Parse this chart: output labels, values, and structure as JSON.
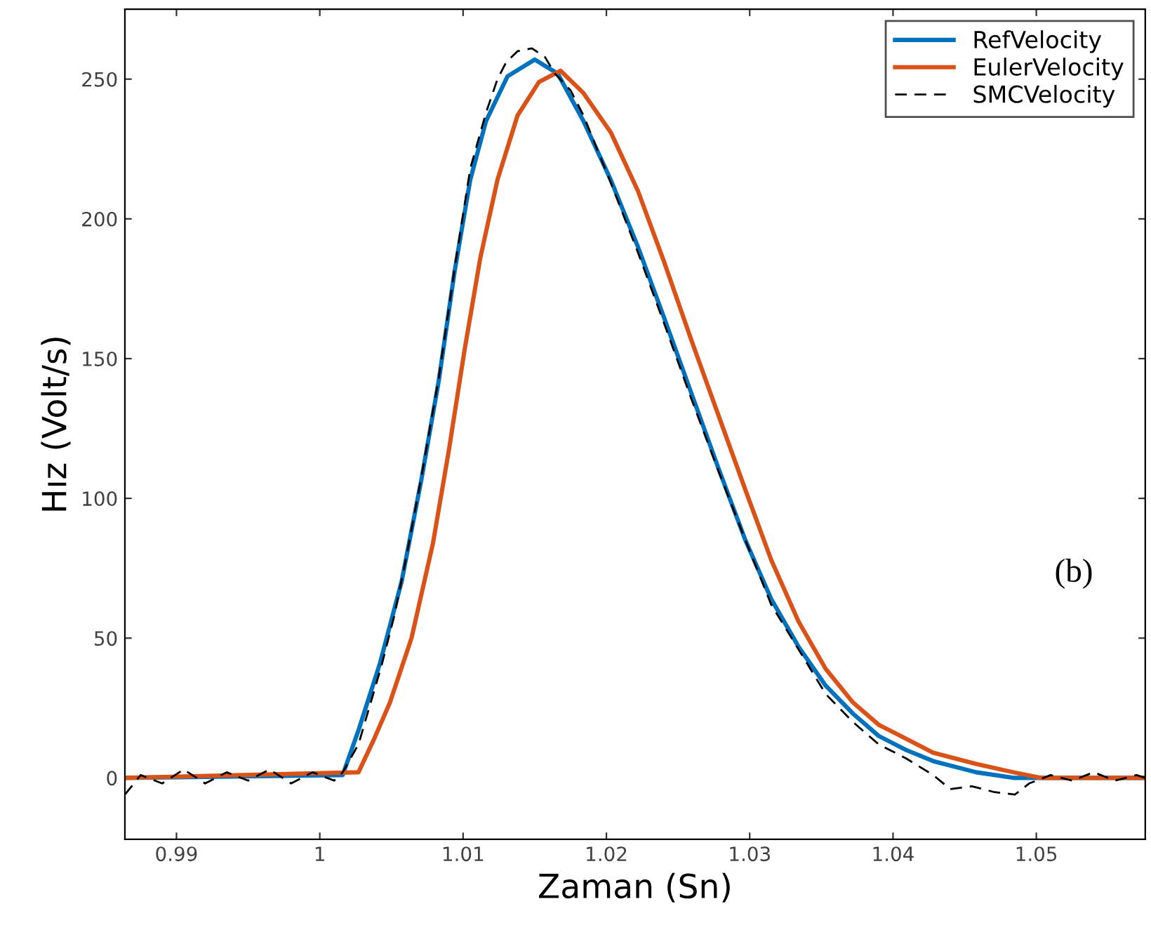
{
  "chart_data": {
    "type": "line",
    "xlabel": "Zaman (Sn)",
    "ylabel": "Hız (Volt/s)",
    "annotations": [
      "(b)"
    ],
    "xlim": [
      0.9864,
      1.0576
    ],
    "xticks": [
      0.99,
      1,
      1.01,
      1.02,
      1.03,
      1.04,
      1.05
    ],
    "ylim": [
      -22,
      275
    ],
    "yticks": [
      0,
      50,
      100,
      150,
      200,
      250
    ],
    "grid": false,
    "legend": "top right",
    "marker": "none",
    "series": [
      {
        "name": "RefVelocity",
        "color": "#0072bd",
        "line_style": "solid",
        "x": [
          0.9864,
          1.0016,
          1.0027,
          1.0042,
          1.0057,
          1.0071,
          1.0083,
          1.0094,
          1.0105,
          1.0116,
          1.0131,
          1.015,
          1.0166,
          1.0184,
          1.0203,
          1.0222,
          1.024,
          1.0259,
          1.0278,
          1.0297,
          1.0315,
          1.0334,
          1.0353,
          1.0372,
          1.039,
          1.0409,
          1.0428,
          1.0458,
          1.0484,
          1.0576
        ],
        "values": [
          0,
          1,
          17,
          41,
          70,
          107,
          142,
          181,
          214,
          235,
          251,
          257,
          252,
          235,
          214,
          190,
          165,
          138,
          111,
          85,
          64,
          47,
          33,
          23,
          15,
          10,
          6,
          2,
          0,
          0
        ]
      },
      {
        "name": "EulerVelocity",
        "color": "#d95319",
        "line_style": "solid",
        "x": [
          0.9864,
          1.0027,
          1.0038,
          1.0049,
          1.0064,
          1.0079,
          1.009,
          1.0101,
          1.0112,
          1.0124,
          1.0138,
          1.0153,
          1.0168,
          1.0184,
          1.0203,
          1.0222,
          1.024,
          1.0259,
          1.0278,
          1.0297,
          1.0315,
          1.0334,
          1.0353,
          1.0372,
          1.039,
          1.0409,
          1.0428,
          1.0458,
          1.0484,
          1.0503,
          1.0576
        ],
        "values": [
          0,
          2,
          14,
          27,
          50,
          84,
          117,
          153,
          186,
          214,
          237,
          249,
          253,
          245,
          231,
          210,
          185,
          157,
          130,
          103,
          78,
          56,
          39,
          27,
          19,
          14,
          9,
          5,
          2,
          0,
          0
        ]
      },
      {
        "name": "SMCVelocity",
        "color": "#000000",
        "line_style": "dashed",
        "x": [
          0.9864,
          0.9875,
          0.989,
          0.9905,
          0.992,
          0.9935,
          0.995,
          0.9965,
          0.998,
          0.9995,
          1.001,
          1.0016,
          1.0027,
          1.0035,
          1.0043,
          1.0052,
          1.006,
          1.0071,
          1.0083,
          1.0094,
          1.0105,
          1.0116,
          1.0124,
          1.013,
          1.0138,
          1.0148,
          1.0157,
          1.0164,
          1.0175,
          1.0184,
          1.0203,
          1.0222,
          1.024,
          1.0259,
          1.0278,
          1.0297,
          1.0315,
          1.0334,
          1.0353,
          1.0372,
          1.039,
          1.0409,
          1.0428,
          1.044,
          1.0455,
          1.047,
          1.0485,
          1.0495,
          1.051,
          1.0525,
          1.054,
          1.0555,
          1.057,
          1.0576
        ],
        "values": [
          -6,
          1,
          -2,
          3,
          -2,
          2,
          -1,
          3,
          -2,
          2,
          -1,
          2,
          12,
          26,
          40,
          58,
          78,
          108,
          143,
          182,
          218,
          238,
          250,
          256,
          260,
          261,
          258,
          252,
          246,
          237,
          213,
          188,
          163,
          136,
          110,
          85,
          62,
          46,
          30,
          20,
          12,
          7,
          1,
          -4,
          -3,
          -5,
          -6,
          -2,
          1,
          -1,
          2,
          -1,
          1,
          0
        ]
      }
    ]
  }
}
